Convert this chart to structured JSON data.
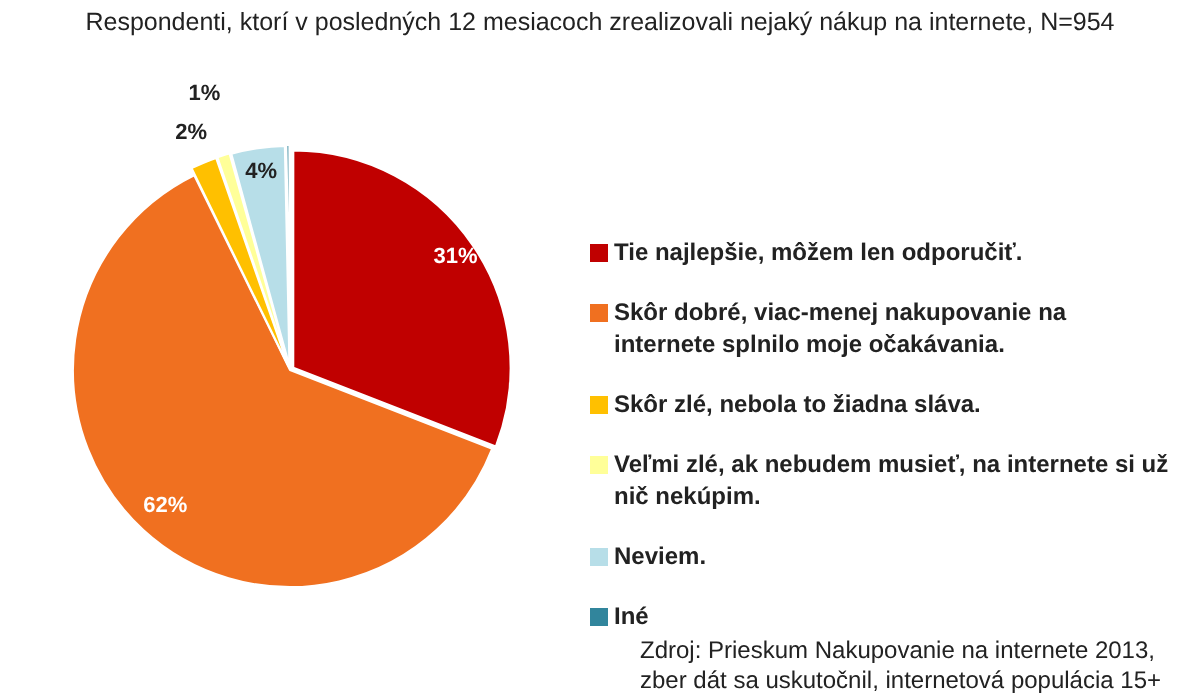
{
  "chart_data": {
    "type": "pie",
    "title": "Respondenti, ktorí v posledných  12 mesiacoch zrealizovali nejaký nákup na internete, N=954",
    "categories": [
      "Tie najlepšie, môžem len odporučiť.",
      "Skôr dobré, viac-menej nakupovanie na internete splnilo moje očakávania.",
      "Skôr zlé, nebola to  žiadna sláva.",
      "Veľmi zlé, ak nebudem musieť, na internete si už nič nekúpim.",
      "Neviem.",
      "Iné"
    ],
    "values": [
      31,
      62,
      2,
      1,
      4,
      0.3
    ],
    "colors": [
      "#c00000",
      "#f07020",
      "#ffc000",
      "#ffff99",
      "#b7dee8",
      "#31859c"
    ],
    "value_labels": [
      "31%",
      "62%",
      "2%",
      "1%",
      "4%",
      null
    ],
    "legend": "right",
    "annotations": [
      "Zdroj: Prieskum Nakupovanie na internete 2013, zber dát sa uskutočnil, internetová populácia 15+"
    ]
  }
}
